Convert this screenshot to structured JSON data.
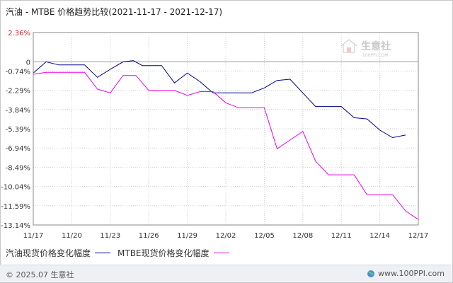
{
  "title": "汽油 - MTBE 价格趋势比较(2021-11-17 - 2021-12-17)",
  "watermark": {
    "name": "生意社",
    "url": "100PPI.COM"
  },
  "footer": {
    "copyright": "© 2025.07 生意社",
    "site": "www.100PPI.com"
  },
  "colors": {
    "series_1": "#00008b",
    "series_2": "#ee00ee",
    "positive_tick": "#cc2222",
    "grid": "#c0c0c0"
  },
  "chart_data": {
    "type": "line",
    "title": "汽油 - MTBE 价格趋势比较(2021-11-17 - 2021-12-17)",
    "xlabel": "",
    "ylabel": "",
    "y_ticks": [
      "2.36%",
      "0",
      "-0.74%",
      "-2.29%",
      "-3.84%",
      "-5.39%",
      "-6.94%",
      "-8.49%",
      "-10.04%",
      "-11.59%",
      "-13.14%"
    ],
    "y_tick_values": [
      2.36,
      0,
      -0.74,
      -2.29,
      -3.84,
      -5.39,
      -6.94,
      -8.49,
      -10.04,
      -11.59,
      -13.14
    ],
    "ylim": [
      -13.14,
      2.36
    ],
    "x_ticks": [
      "11/17",
      "11/20",
      "11/23",
      "11/26",
      "11/29",
      "12/02",
      "12/05",
      "12/08",
      "12/11",
      "12/14",
      "12/17"
    ],
    "x_tick_days": [
      0,
      3,
      6,
      9,
      12,
      15,
      18,
      21,
      24,
      27,
      30
    ],
    "grid": true,
    "legend_position": "bottom-left",
    "series": [
      {
        "name": "汽油现货价格变化幅度",
        "color": "#00008b",
        "points": [
          [
            0,
            -0.9
          ],
          [
            1,
            0
          ],
          [
            2,
            -0.25
          ],
          [
            3,
            -0.25
          ],
          [
            4,
            -0.25
          ],
          [
            5,
            -1.25
          ],
          [
            6,
            -0.6
          ],
          [
            7,
            0
          ],
          [
            7.8,
            0.1
          ],
          [
            8.5,
            -0.3
          ],
          [
            9,
            -0.3
          ],
          [
            10,
            -0.3
          ],
          [
            11,
            -1.7
          ],
          [
            12,
            -0.9
          ],
          [
            13,
            -1.6
          ],
          [
            14,
            -2.5
          ],
          [
            15,
            -2.5
          ],
          [
            16,
            -2.5
          ],
          [
            17,
            -2.5
          ],
          [
            18,
            -2.1
          ],
          [
            19,
            -1.5
          ],
          [
            20,
            -1.4
          ],
          [
            21,
            -2.5
          ],
          [
            22,
            -3.6
          ],
          [
            23,
            -3.6
          ],
          [
            24,
            -3.6
          ],
          [
            25,
            -4.5
          ],
          [
            26,
            -4.6
          ],
          [
            27,
            -5.5
          ],
          [
            28,
            -6.1
          ],
          [
            29,
            -5.9
          ]
        ]
      },
      {
        "name": "MTBE现货价格变化幅度",
        "color": "#ee00ee",
        "points": [
          [
            0,
            -1.0
          ],
          [
            1,
            -0.85
          ],
          [
            2,
            -0.85
          ],
          [
            3,
            -0.85
          ],
          [
            4,
            -0.85
          ],
          [
            5,
            -2.2
          ],
          [
            6,
            -2.5
          ],
          [
            7,
            -1.1
          ],
          [
            8,
            -1.1
          ],
          [
            9,
            -2.3
          ],
          [
            10,
            -2.3
          ],
          [
            11,
            -2.3
          ],
          [
            12,
            -2.7
          ],
          [
            13,
            -2.4
          ],
          [
            14,
            -2.4
          ],
          [
            15,
            -3.3
          ],
          [
            16,
            -3.7
          ],
          [
            17,
            -3.7
          ],
          [
            18,
            -3.7
          ],
          [
            19,
            -7.0
          ],
          [
            20,
            -6.3
          ],
          [
            21,
            -5.6
          ],
          [
            22,
            -8.0
          ],
          [
            23,
            -9.1
          ],
          [
            24,
            -9.1
          ],
          [
            25,
            -9.1
          ],
          [
            26,
            -10.7
          ],
          [
            27,
            -10.7
          ],
          [
            28,
            -10.7
          ],
          [
            29,
            -12.0
          ],
          [
            30,
            -12.7
          ]
        ]
      }
    ]
  }
}
